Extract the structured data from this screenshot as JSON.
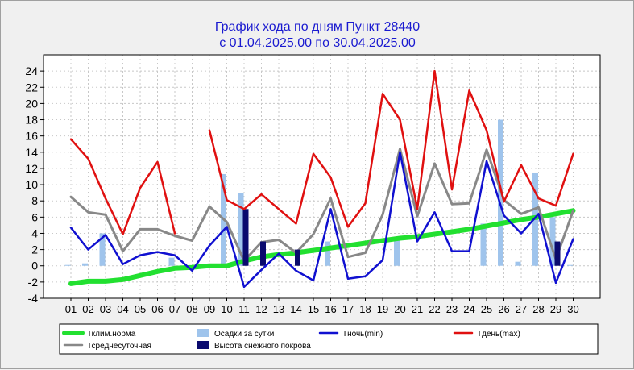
{
  "chart_data": {
    "type": "bar+line",
    "title_line1": "График хода по дням  Пункт 28440",
    "title_line2": "с 01.04.2025.00 по 30.04.2025.00",
    "ylim": [
      -4,
      26
    ],
    "yticks": [
      -4,
      -2,
      0,
      2,
      4,
      6,
      8,
      10,
      12,
      14,
      16,
      18,
      20,
      22,
      24
    ],
    "categories": [
      "01",
      "02",
      "03",
      "04",
      "05",
      "06",
      "07",
      "08",
      "09",
      "10",
      "11",
      "12",
      "13",
      "14",
      "15",
      "16",
      "17",
      "18",
      "19",
      "20",
      "21",
      "22",
      "23",
      "24",
      "25",
      "26",
      "27",
      "28",
      "29",
      "30"
    ],
    "grid": true,
    "series": [
      {
        "name": "Тклим.норма",
        "kind": "line",
        "color": "#22e030",
        "values": [
          -2.2,
          -1.9,
          -1.9,
          -1.7,
          -1.2,
          -0.7,
          -0.3,
          -0.2,
          0,
          0,
          0.6,
          1.1,
          1.4,
          1.6,
          1.9,
          2.2,
          2.5,
          2.8,
          3.1,
          3.4,
          3.6,
          3.9,
          4.2,
          4.5,
          4.9,
          5.3,
          5.7,
          6.0,
          6.4,
          6.8
        ]
      },
      {
        "name": "Осадки за сутки",
        "kind": "bar",
        "color": "#9fc4ec",
        "values": [
          0.1,
          0.3,
          4.0,
          0,
          0,
          0,
          1.0,
          0,
          0,
          11.3,
          9.0,
          0,
          0,
          0,
          0,
          3.0,
          0,
          0,
          0,
          3.2,
          0,
          0,
          0,
          0,
          5.2,
          18.0,
          0.5,
          11.5,
          6.0,
          0.1
        ]
      },
      {
        "name": "Тночь(min)",
        "kind": "line",
        "color": "#1010d0",
        "values": [
          4.7,
          2.0,
          3.8,
          0.2,
          1.3,
          1.7,
          1.3,
          -0.6,
          2.5,
          4.8,
          -2.6,
          -0.5,
          1.5,
          -0.6,
          -1.8,
          7.0,
          -1.6,
          -1.3,
          0.7,
          14.0,
          3.0,
          6.6,
          1.8,
          1.8,
          12.9,
          6.2,
          4.0,
          6.4,
          -2.1,
          3.3
        ]
      },
      {
        "name": "Тдень(max)",
        "kind": "line",
        "color": "#e01010",
        "values": [
          15.6,
          13.2,
          8.3,
          3.9,
          9.6,
          12.8,
          4.0,
          null,
          16.7,
          8.1,
          7.0,
          8.8,
          7.0,
          5.2,
          13.8,
          10.9,
          4.8,
          7.7,
          21.2,
          18.0,
          7.0,
          24.0,
          9.4,
          21.6,
          16.7,
          7.9,
          12.4,
          8.3,
          7.4,
          13.8
        ]
      },
      {
        "name": "Тсреднесуточная",
        "kind": "line",
        "color": "#888888",
        "values": [
          8.5,
          6.6,
          6.3,
          1.8,
          4.5,
          4.5,
          3.7,
          3.1,
          7.3,
          5.4,
          0.6,
          2.9,
          3.2,
          1.6,
          3.9,
          8.3,
          1.1,
          1.6,
          6.3,
          14.4,
          6.1,
          12.6,
          7.6,
          7.7,
          14.3,
          8.1,
          6.4,
          7.2,
          0.8,
          6.8
        ]
      },
      {
        "name": "Высота снежного покрова",
        "kind": "bar",
        "color": "#0a0a6e",
        "values": [
          0,
          0,
          0,
          0,
          0,
          0,
          0,
          0,
          0,
          0,
          7.0,
          3.0,
          0,
          2.0,
          0,
          0,
          0,
          0,
          0,
          0,
          0,
          0,
          0,
          0,
          0,
          0,
          0,
          0,
          3.0,
          0
        ]
      }
    ],
    "legend": {
      "placement": "bottom",
      "entries": [
        "Тклим.норма",
        "Осадки за сутки",
        "Тночь(min)",
        "Тдень(max)",
        "Тсреднесуточная",
        "Высота снежного покрова"
      ]
    }
  }
}
